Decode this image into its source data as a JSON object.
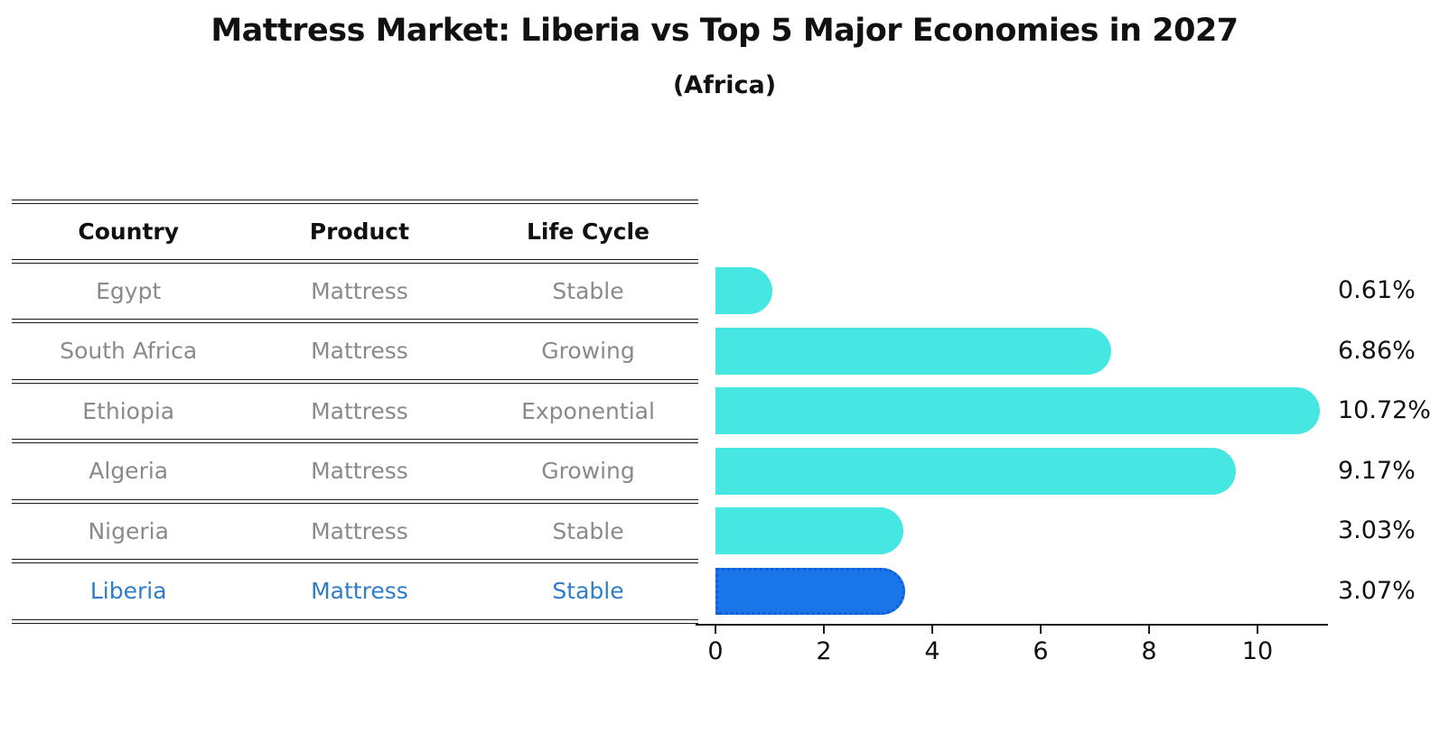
{
  "title": "Mattress Market: Liberia vs Top 5 Major Economies in 2027",
  "subtitle": "(Africa)",
  "table": {
    "headers": [
      "Country",
      "Product",
      "Life Cycle"
    ],
    "rows": [
      {
        "country": "Egypt",
        "product": "Mattress",
        "life_cycle": "Stable",
        "highlighted": false
      },
      {
        "country": "South Africa",
        "product": "Mattress",
        "life_cycle": "Growing",
        "highlighted": false
      },
      {
        "country": "Ethiopia",
        "product": "Mattress",
        "life_cycle": "Exponential",
        "highlighted": false
      },
      {
        "country": "Algeria",
        "product": "Mattress",
        "life_cycle": "Growing",
        "highlighted": false
      },
      {
        "country": "Nigeria",
        "product": "Mattress",
        "life_cycle": "Stable",
        "highlighted": false
      },
      {
        "country": "Liberia",
        "product": "Mattress",
        "life_cycle": "Stable",
        "highlighted": true
      }
    ]
  },
  "chart_data": {
    "type": "bar",
    "orientation": "horizontal",
    "title": "Mattress Market: Liberia vs Top 5 Major Economies in 2027",
    "subtitle": "(Africa)",
    "categories": [
      "Egypt",
      "South Africa",
      "Ethiopia",
      "Algeria",
      "Nigeria",
      "Liberia"
    ],
    "values": [
      0.61,
      6.86,
      10.72,
      9.17,
      3.03,
      3.07
    ],
    "value_labels": [
      "0.61%",
      "6.86%",
      "10.72%",
      "9.17%",
      "3.03%",
      "3.07%"
    ],
    "highlight_index": 5,
    "xlabel": "",
    "ylabel": "",
    "xlim": [
      0,
      11.3
    ],
    "x_ticks": [
      0,
      2,
      4,
      6,
      8,
      10
    ],
    "grid": false,
    "legend": false
  },
  "colors": {
    "bar": "#46E6E2",
    "highlight_bar": "#1A76E8",
    "highlight_border": "#0E5FD6",
    "highlight_text": "#2E7DC6",
    "table_text": "#8A8A8A",
    "heading_text": "#111111",
    "axis": "#1B1B1B",
    "background": "#FFFFFF"
  }
}
